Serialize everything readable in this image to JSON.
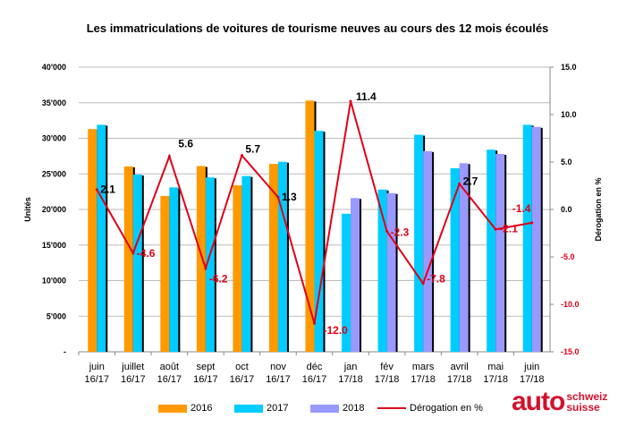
{
  "chart_data": {
    "type": "bar+line",
    "title": "Les immatriculations de voitures de tourisme neuves au cours des 12 mois écoulés",
    "ylabel": "Unités",
    "y2label": "Dérogation en %",
    "ylim": [
      0,
      40000
    ],
    "y2lim": [
      -15,
      15
    ],
    "yticks": [
      "-",
      "5'000",
      "10'000",
      "15'000",
      "20'000",
      "25'000",
      "30'000",
      "35'000",
      "40'000"
    ],
    "y2ticks": [
      "-15.0",
      "-10.0",
      "-5.0",
      "0.0",
      "5.0",
      "10.0",
      "15.0"
    ],
    "categories": [
      [
        "juin",
        "16/17"
      ],
      [
        "juillet",
        "16/17"
      ],
      [
        "août",
        "16/17"
      ],
      [
        "sept",
        "16/17"
      ],
      [
        "oct",
        "16/17"
      ],
      [
        "nov",
        "16/17"
      ],
      [
        "déc",
        "16/17"
      ],
      [
        "jan",
        "17/18"
      ],
      [
        "fév",
        "17/18"
      ],
      [
        "mars",
        "17/18"
      ],
      [
        "avril",
        "17/18"
      ],
      [
        "mai",
        "17/18"
      ],
      [
        "juin",
        "17/18"
      ]
    ],
    "grid": true,
    "legend_position": "bottom",
    "series": [
      {
        "name": "2016",
        "type": "bar",
        "color": "#ff9900",
        "values": [
          31300,
          26050,
          21900,
          26100,
          23400,
          26400,
          35300,
          null,
          null,
          null,
          null,
          null,
          null
        ]
      },
      {
        "name": "2017",
        "type": "bar",
        "color": "#00ccff",
        "values": [
          31900,
          24900,
          23100,
          24500,
          24700,
          26700,
          31050,
          19400,
          22800,
          30500,
          25800,
          28400,
          31900
        ]
      },
      {
        "name": "2018",
        "type": "bar",
        "color": "#9999ff",
        "values": [
          null,
          null,
          null,
          null,
          null,
          null,
          null,
          21600,
          22300,
          28200,
          26500,
          27800,
          31600
        ]
      },
      {
        "name": "Dérogation en %",
        "type": "line",
        "axis": "right",
        "color": "#e0001a",
        "values": [
          2.1,
          -4.6,
          5.6,
          -6.2,
          5.7,
          1.3,
          -12.0,
          11.4,
          -2.3,
          -7.8,
          2.7,
          -2.1,
          -1.4
        ],
        "labels": [
          "2.1",
          "-4.6",
          "5.6",
          "-6.2",
          "5.7",
          "1.3",
          "-12.0",
          "11.4",
          "-2.3",
          "-7.8",
          "2.7",
          "-2.1",
          "-1.4"
        ]
      }
    ]
  },
  "logo": {
    "main": "auto",
    "line1": "schweiz",
    "line2": "suisse"
  }
}
